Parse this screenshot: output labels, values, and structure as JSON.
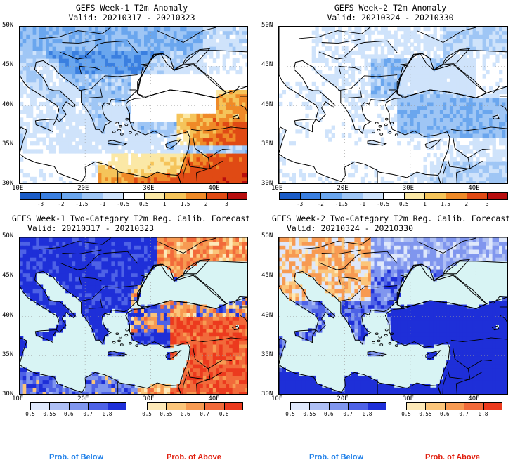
{
  "panels": [
    {
      "title": "GEFS Week-1 T2m Anomaly",
      "valid": "Valid: 20210317 - 20210323",
      "style": "anomaly-week1"
    },
    {
      "title": "GEFS Week-2 T2m Anomaly",
      "valid": "Valid: 20210324 - 20210330",
      "style": "anomaly-week2"
    },
    {
      "title": "GEFS Week-1 Two-Category T2m Reg. Calib. Forecast",
      "valid": "Valid: 20210317 - 20210323",
      "style": "prob-week1"
    },
    {
      "title": "GEFS Week-2 Two-Category T2m Reg. Calib. Forecast",
      "valid": "Valid: 20210324 - 20210330",
      "style": "prob-week2"
    }
  ],
  "axes": {
    "lat_labels": [
      "50N",
      "45N",
      "40N",
      "35N",
      "30N"
    ],
    "lon_labels": [
      "10E",
      "20E",
      "30E",
      "40E"
    ]
  },
  "anomaly_colorbar": {
    "labels": [
      "-3",
      "-2",
      "-1.5",
      "-1",
      "-0.5",
      "0.5",
      "1",
      "1.5",
      "2",
      "3"
    ],
    "colors": [
      "#1a5cc8",
      "#3a7fe0",
      "#6aa6ee",
      "#9fc6f5",
      "#cfe3fb",
      "#ffffff",
      "#fbe8a6",
      "#f5c45a",
      "#ef8a28",
      "#e04a14",
      "#b80e0e"
    ]
  },
  "prob_colorbars": {
    "below": {
      "labels": [
        "0.5",
        "0.55",
        "0.6",
        "0.7",
        "0.8"
      ],
      "colors": [
        "#dfe8fb",
        "#aebff5",
        "#8096ee",
        "#4e62e6",
        "#1e2fd8"
      ]
    },
    "above": {
      "labels": [
        "0.5",
        "0.55",
        "0.6",
        "0.7",
        "0.8"
      ],
      "colors": [
        "#fde9b8",
        "#fbc57a",
        "#f79a52",
        "#f26a3a",
        "#ec3a1e"
      ]
    }
  },
  "footer": {
    "below_label": "Prob. of Below",
    "above_label": "Prob. of Above",
    "below_color": "#1e7fe8",
    "above_color": "#e01e0e"
  },
  "map_colors": {
    "sea": "#d8f4f4",
    "land_line": "#000000"
  }
}
